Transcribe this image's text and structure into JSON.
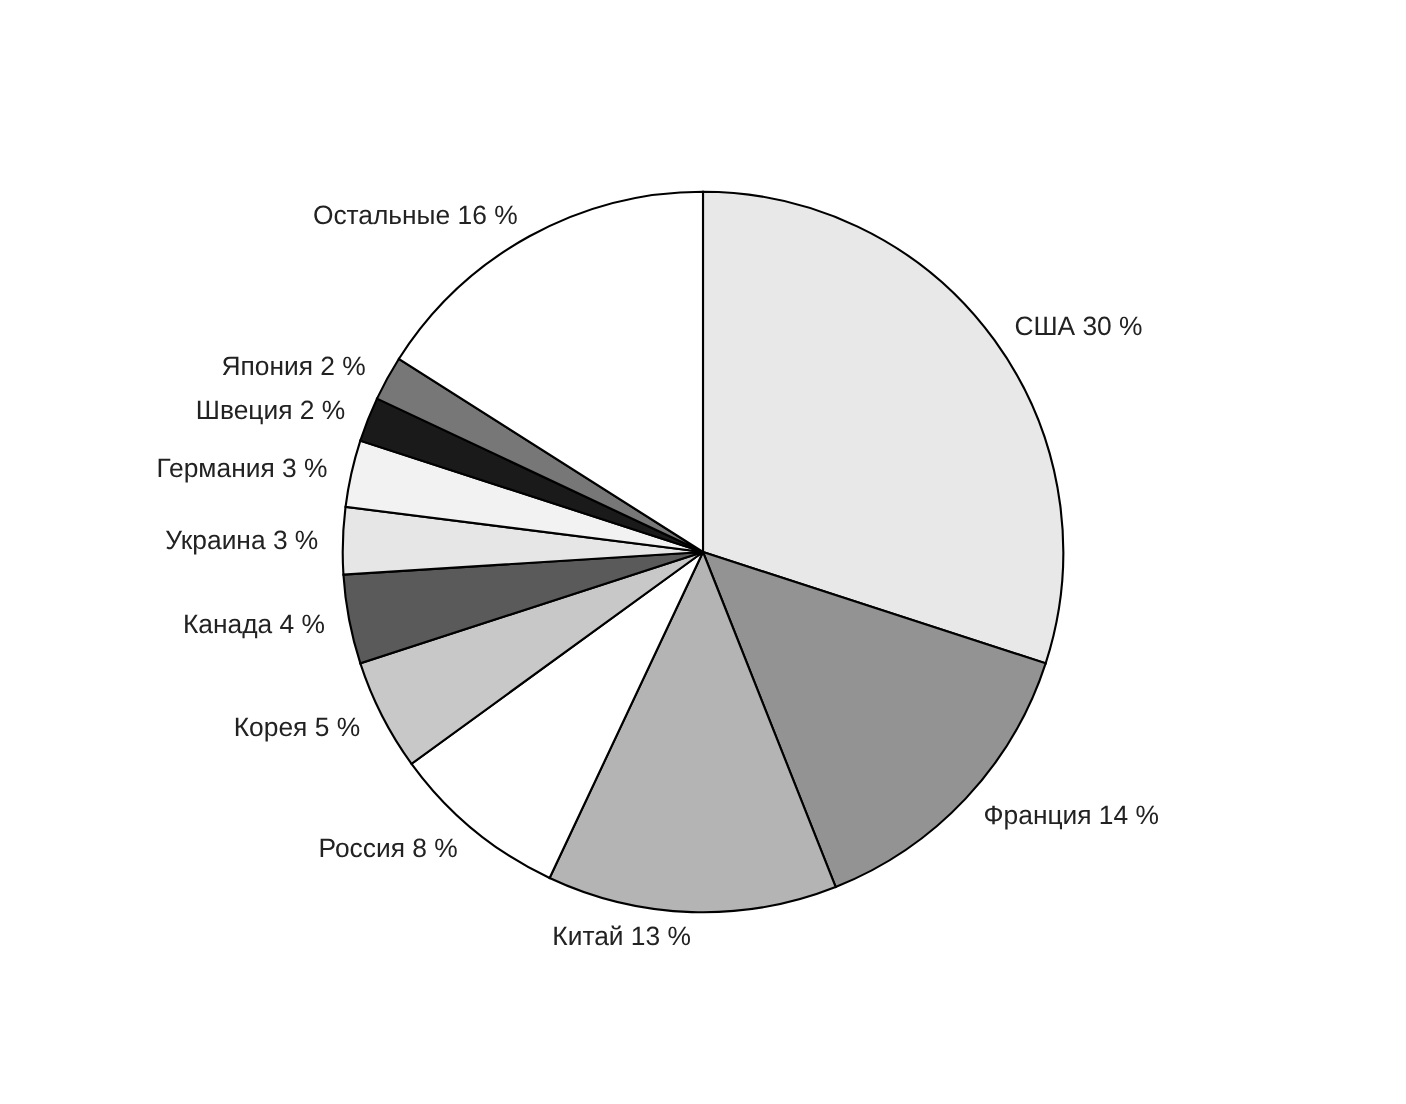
{
  "chart_data": {
    "type": "pie",
    "categories": [
      "США",
      "Франция",
      "Китай",
      "Россия",
      "Корея",
      "Канада",
      "Украина",
      "Германия",
      "Швеция",
      "Япония",
      "Остальные"
    ],
    "values": [
      30,
      14,
      13,
      8,
      5,
      4,
      3,
      3,
      2,
      2,
      16
    ],
    "value_labels": [
      "30 %",
      "14 %",
      "13 %",
      "8 %",
      "5 %",
      "4 %",
      "3 %",
      "3 %",
      "2 %",
      "2 %",
      "16 %"
    ],
    "colors": [
      "#e8e8e8",
      "#939393",
      "#b4b4b4",
      "#ffffff",
      "#c8c8c8",
      "#5a5a5a",
      "#e6e6e6",
      "#f2f2f2",
      "#1a1a1a",
      "#777777",
      "#ffffff"
    ]
  }
}
